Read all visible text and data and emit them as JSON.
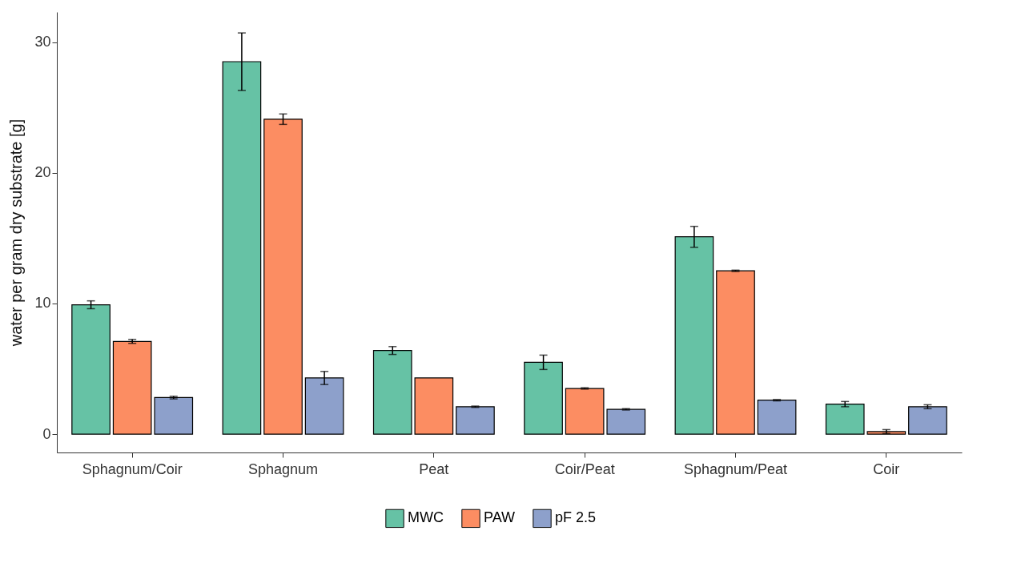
{
  "chart_data": {
    "type": "bar",
    "ylabel": "water per gram dry substrate [g]",
    "categories": [
      "Sphagnum/Coir",
      "Sphagnum",
      "Peat",
      "Coir/Peat",
      "Sphagnum/Peat",
      "Coir"
    ],
    "series": [
      {
        "name": "MWC",
        "color": "#66c2a5",
        "values": [
          9.9,
          28.5,
          6.4,
          5.5,
          15.1,
          2.3
        ],
        "errors": [
          0.3,
          2.2,
          0.3,
          0.55,
          0.8,
          0.2
        ]
      },
      {
        "name": "PAW",
        "color": "#fc8d62",
        "values": [
          7.1,
          24.1,
          4.3,
          3.5,
          12.5,
          0.2
        ],
        "errors": [
          0.15,
          0.4,
          null,
          0.05,
          0.05,
          0.15
        ]
      },
      {
        "name": "pF 2.5",
        "color": "#8da0cb",
        "values": [
          2.8,
          4.3,
          2.1,
          1.9,
          2.6,
          2.1
        ],
        "errors": [
          0.1,
          0.5,
          0.05,
          0.05,
          0.05,
          0.15
        ]
      }
    ],
    "ylim": [
      -1.4,
      32.3
    ],
    "yticks": [
      0,
      10,
      20,
      30
    ],
    "grid": false,
    "legend": "bottom"
  }
}
